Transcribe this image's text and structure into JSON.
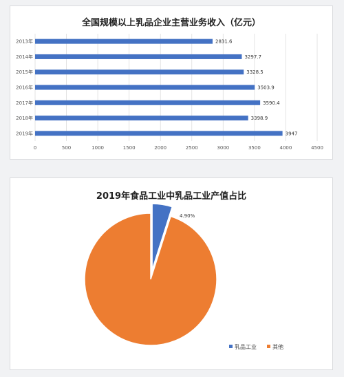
{
  "colors": {
    "bar": "#4472c4",
    "pie_dairy": "#4472c4",
    "pie_other": "#ed7d31",
    "grid": "#dcdcdc"
  },
  "chart_data": [
    {
      "type": "bar",
      "orientation": "horizontal",
      "title": "全国规模以上乳品企业主营业务收入（亿元）",
      "categories": [
        "2013年",
        "2014年",
        "2015年",
        "2016年",
        "2017年",
        "2018年",
        "2019年"
      ],
      "values": [
        2831.6,
        3297.7,
        3328.5,
        3503.9,
        3590.4,
        3398.9,
        3947
      ],
      "value_labels": [
        "2831.6",
        "3297.7",
        "3328.5",
        "3503.9",
        "3590.4",
        "3398.9",
        "3947"
      ],
      "xlim": [
        0,
        4500
      ],
      "xticks": [
        "0",
        "500",
        "1000",
        "1500",
        "2000",
        "2500",
        "3000",
        "3500",
        "4000",
        "4500"
      ],
      "grid": true,
      "legend": "none"
    },
    {
      "type": "pie",
      "title": "2019年食品工业中乳品工业产值占比",
      "labels": [
        "乳品工业",
        "其他"
      ],
      "values": [
        4.9,
        95.1
      ],
      "data_label": "4.90%",
      "exploded": "乳品工业",
      "legend": "bottom-right"
    }
  ]
}
